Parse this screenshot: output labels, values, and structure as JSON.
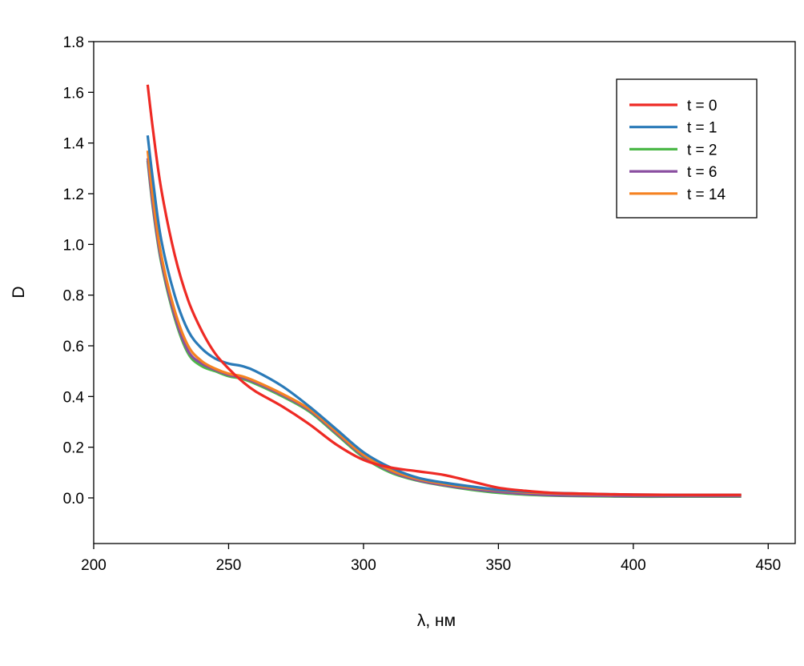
{
  "chart_data": {
    "type": "line",
    "title": "",
    "xlabel": "λ, нм",
    "ylabel": "D",
    "xlim": [
      200,
      460
    ],
    "ylim": [
      -0.18,
      1.8
    ],
    "xticks": [
      200,
      250,
      300,
      350,
      400,
      450
    ],
    "xtick_labels": [
      "200",
      "250",
      "300",
      "350",
      "400",
      "450"
    ],
    "yticks": [
      0.0,
      0.2,
      0.4,
      0.6,
      0.8,
      1.0,
      1.2,
      1.4,
      1.6,
      1.8
    ],
    "ytick_labels": [
      "0.0",
      "0.2",
      "0.4",
      "0.6",
      "0.8",
      "1.0",
      "1.2",
      "1.4",
      "1.6",
      "1.8"
    ],
    "grid": false,
    "legend_position": "top-right",
    "x": [
      220,
      222,
      225,
      230,
      235,
      240,
      245,
      250,
      255,
      260,
      270,
      280,
      290,
      300,
      310,
      320,
      330,
      340,
      350,
      360,
      370,
      380,
      400,
      420,
      440
    ],
    "series": [
      {
        "name": "t = 0",
        "color": "#ee2a24",
        "values": [
          1.63,
          1.45,
          1.22,
          0.96,
          0.78,
          0.66,
          0.57,
          0.51,
          0.46,
          0.42,
          0.36,
          0.29,
          0.21,
          0.15,
          0.12,
          0.105,
          0.09,
          0.065,
          0.04,
          0.028,
          0.02,
          0.017,
          0.013,
          0.012,
          0.012
        ]
      },
      {
        "name": "t = 1",
        "color": "#2a7ab8",
        "values": [
          1.43,
          1.25,
          1.02,
          0.8,
          0.66,
          0.59,
          0.55,
          0.53,
          0.52,
          0.5,
          0.44,
          0.36,
          0.27,
          0.18,
          0.12,
          0.08,
          0.06,
          0.045,
          0.032,
          0.025,
          0.02,
          0.017,
          0.013,
          0.012,
          0.012
        ]
      },
      {
        "name": "t = 2",
        "color": "#4cb848",
        "values": [
          1.33,
          1.14,
          0.93,
          0.71,
          0.57,
          0.52,
          0.5,
          0.48,
          0.47,
          0.45,
          0.4,
          0.34,
          0.25,
          0.16,
          0.1,
          0.068,
          0.048,
          0.032,
          0.02,
          0.013,
          0.009,
          0.007,
          0.005,
          0.005,
          0.005
        ]
      },
      {
        "name": "t = 6",
        "color": "#8a4fa0",
        "values": [
          1.34,
          1.15,
          0.94,
          0.72,
          0.58,
          0.53,
          0.505,
          0.485,
          0.475,
          0.455,
          0.405,
          0.345,
          0.255,
          0.165,
          0.105,
          0.07,
          0.05,
          0.035,
          0.024,
          0.016,
          0.011,
          0.009,
          0.007,
          0.007,
          0.007
        ]
      },
      {
        "name": "t = 14",
        "color": "#f58220",
        "values": [
          1.37,
          1.18,
          0.96,
          0.74,
          0.6,
          0.54,
          0.51,
          0.49,
          0.48,
          0.46,
          0.41,
          0.35,
          0.26,
          0.17,
          0.11,
          0.075,
          0.055,
          0.04,
          0.03,
          0.022,
          0.018,
          0.015,
          0.012,
          0.011,
          0.011
        ]
      }
    ]
  }
}
